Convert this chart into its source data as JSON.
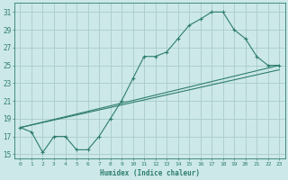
{
  "xlabel": "Humidex (Indice chaleur)",
  "bg_color": "#cce8e8",
  "grid_color": "#aacccc",
  "line_color": "#2e7d6e",
  "xlim": [
    -0.5,
    23.5
  ],
  "ylim": [
    14.5,
    32
  ],
  "xticks": [
    0,
    1,
    2,
    3,
    4,
    5,
    6,
    7,
    8,
    9,
    10,
    11,
    12,
    13,
    14,
    15,
    16,
    17,
    18,
    19,
    20,
    21,
    22,
    23
  ],
  "yticks": [
    15,
    17,
    19,
    21,
    23,
    25,
    27,
    29,
    31
  ],
  "line1_x": [
    0,
    1,
    2,
    3,
    4,
    5,
    6,
    7,
    8,
    9,
    10,
    11,
    12,
    13,
    14,
    15,
    16,
    17,
    18,
    19,
    20,
    21,
    22,
    23
  ],
  "line1_y": [
    18.0,
    17.5,
    15.2,
    17.0,
    17.0,
    15.5,
    15.5,
    17.0,
    19.0,
    21.0,
    23.5,
    26.0,
    26.0,
    26.5,
    28.0,
    29.5,
    30.2,
    31.0,
    31.0,
    29.0,
    28.0,
    26.0,
    25.0,
    25.0
  ],
  "line2_x": [
    0,
    23
  ],
  "line2_y": [
    18.0,
    25.0
  ],
  "line3_x": [
    0,
    23
  ],
  "line3_y": [
    18.0,
    24.5
  ]
}
